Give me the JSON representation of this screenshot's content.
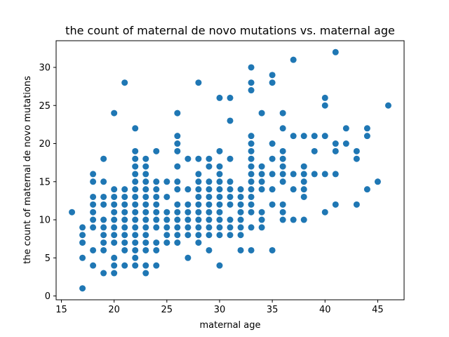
{
  "chart_data": {
    "type": "scatter",
    "title": "the count of maternal de novo mutations vs. maternal age",
    "xlabel": "maternal age",
    "ylabel": "the count of maternal de novo mutations",
    "xlim": [
      14.5,
      47.5
    ],
    "ylim": [
      -0.5,
      33.5
    ],
    "xticks": [
      15,
      20,
      25,
      30,
      35,
      40,
      45
    ],
    "yticks": [
      0,
      5,
      10,
      15,
      20,
      25,
      30
    ],
    "grid": false,
    "legend": "none",
    "marker_color": "#1f77b4",
    "points": [
      [
        16,
        11
      ],
      [
        17,
        1
      ],
      [
        17,
        5
      ],
      [
        17,
        7
      ],
      [
        17,
        8
      ],
      [
        17,
        9
      ],
      [
        18,
        4
      ],
      [
        18,
        6
      ],
      [
        18,
        9
      ],
      [
        18,
        10
      ],
      [
        18,
        11
      ],
      [
        18,
        12
      ],
      [
        18,
        13
      ],
      [
        18,
        15
      ],
      [
        18,
        16
      ],
      [
        19,
        3
      ],
      [
        19,
        6
      ],
      [
        19,
        7
      ],
      [
        19,
        8
      ],
      [
        19,
        9
      ],
      [
        19,
        10
      ],
      [
        19,
        12
      ],
      [
        19,
        13
      ],
      [
        19,
        15
      ],
      [
        19,
        18
      ],
      [
        20,
        3
      ],
      [
        20,
        4
      ],
      [
        20,
        5
      ],
      [
        20,
        7
      ],
      [
        20,
        8
      ],
      [
        20,
        9
      ],
      [
        20,
        10
      ],
      [
        20,
        11
      ],
      [
        20,
        12
      ],
      [
        20,
        13
      ],
      [
        20,
        14
      ],
      [
        20,
        24
      ],
      [
        21,
        4
      ],
      [
        21,
        6
      ],
      [
        21,
        7
      ],
      [
        21,
        8
      ],
      [
        21,
        9
      ],
      [
        21,
        10
      ],
      [
        21,
        11
      ],
      [
        21,
        12
      ],
      [
        21,
        13
      ],
      [
        21,
        14
      ],
      [
        21,
        28
      ],
      [
        22,
        4
      ],
      [
        22,
        5
      ],
      [
        22,
        6
      ],
      [
        22,
        7
      ],
      [
        22,
        8
      ],
      [
        22,
        9
      ],
      [
        22,
        10
      ],
      [
        22,
        11
      ],
      [
        22,
        12
      ],
      [
        22,
        13
      ],
      [
        22,
        14
      ],
      [
        22,
        15
      ],
      [
        22,
        16
      ],
      [
        22,
        17
      ],
      [
        22,
        18
      ],
      [
        22,
        19
      ],
      [
        22,
        22
      ],
      [
        23,
        3
      ],
      [
        23,
        4
      ],
      [
        23,
        6
      ],
      [
        23,
        7
      ],
      [
        23,
        8
      ],
      [
        23,
        9
      ],
      [
        23,
        10
      ],
      [
        23,
        11
      ],
      [
        23,
        12
      ],
      [
        23,
        13
      ],
      [
        23,
        14
      ],
      [
        23,
        15
      ],
      [
        23,
        16
      ],
      [
        23,
        17
      ],
      [
        23,
        18
      ],
      [
        24,
        4
      ],
      [
        24,
        6
      ],
      [
        24,
        7
      ],
      [
        24,
        9
      ],
      [
        24,
        10
      ],
      [
        24,
        11
      ],
      [
        24,
        12
      ],
      [
        24,
        13
      ],
      [
        24,
        14
      ],
      [
        24,
        15
      ],
      [
        24,
        19
      ],
      [
        25,
        7
      ],
      [
        25,
        8
      ],
      [
        25,
        9
      ],
      [
        25,
        10
      ],
      [
        25,
        11
      ],
      [
        25,
        13
      ],
      [
        25,
        15
      ],
      [
        26,
        7
      ],
      [
        26,
        8
      ],
      [
        26,
        9
      ],
      [
        26,
        10
      ],
      [
        26,
        11
      ],
      [
        26,
        12
      ],
      [
        26,
        14
      ],
      [
        26,
        15
      ],
      [
        26,
        17
      ],
      [
        26,
        19
      ],
      [
        26,
        20
      ],
      [
        26,
        21
      ],
      [
        26,
        24
      ],
      [
        27,
        5
      ],
      [
        27,
        8
      ],
      [
        27,
        9
      ],
      [
        27,
        10
      ],
      [
        27,
        11
      ],
      [
        27,
        12
      ],
      [
        27,
        14
      ],
      [
        27,
        18
      ],
      [
        28,
        7
      ],
      [
        28,
        8
      ],
      [
        28,
        9
      ],
      [
        28,
        10
      ],
      [
        28,
        11
      ],
      [
        28,
        12
      ],
      [
        28,
        13
      ],
      [
        28,
        14
      ],
      [
        28,
        15
      ],
      [
        28,
        16
      ],
      [
        28,
        18
      ],
      [
        28,
        28
      ],
      [
        29,
        6
      ],
      [
        29,
        8
      ],
      [
        29,
        9
      ],
      [
        29,
        10
      ],
      [
        29,
        11
      ],
      [
        29,
        12
      ],
      [
        29,
        13
      ],
      [
        29,
        14
      ],
      [
        29,
        15
      ],
      [
        29,
        17
      ],
      [
        29,
        18
      ],
      [
        30,
        4
      ],
      [
        30,
        8
      ],
      [
        30,
        9
      ],
      [
        30,
        10
      ],
      [
        30,
        11
      ],
      [
        30,
        12
      ],
      [
        30,
        13
      ],
      [
        30,
        14
      ],
      [
        30,
        15
      ],
      [
        30,
        16
      ],
      [
        30,
        17
      ],
      [
        30,
        19
      ],
      [
        30,
        26
      ],
      [
        31,
        8
      ],
      [
        31,
        9
      ],
      [
        31,
        10
      ],
      [
        31,
        12
      ],
      [
        31,
        13
      ],
      [
        31,
        14
      ],
      [
        31,
        15
      ],
      [
        31,
        18
      ],
      [
        31,
        23
      ],
      [
        31,
        26
      ],
      [
        32,
        6
      ],
      [
        32,
        8
      ],
      [
        32,
        9
      ],
      [
        32,
        10
      ],
      [
        32,
        11
      ],
      [
        32,
        12
      ],
      [
        32,
        13
      ],
      [
        32,
        14
      ],
      [
        33,
        6
      ],
      [
        33,
        9
      ],
      [
        33,
        11
      ],
      [
        33,
        12
      ],
      [
        33,
        13
      ],
      [
        33,
        14
      ],
      [
        33,
        15
      ],
      [
        33,
        16
      ],
      [
        33,
        17
      ],
      [
        33,
        18
      ],
      [
        33,
        19
      ],
      [
        33,
        20
      ],
      [
        33,
        21
      ],
      [
        33,
        27
      ],
      [
        33,
        28
      ],
      [
        33,
        30
      ],
      [
        34,
        9
      ],
      [
        34,
        10
      ],
      [
        34,
        11
      ],
      [
        34,
        14
      ],
      [
        34,
        15
      ],
      [
        34,
        16
      ],
      [
        34,
        17
      ],
      [
        34,
        24
      ],
      [
        35,
        6
      ],
      [
        35,
        12
      ],
      [
        35,
        14
      ],
      [
        35,
        16
      ],
      [
        35,
        18
      ],
      [
        35,
        20
      ],
      [
        35,
        28
      ],
      [
        35,
        29
      ],
      [
        36,
        10
      ],
      [
        36,
        11
      ],
      [
        36,
        12
      ],
      [
        36,
        15
      ],
      [
        36,
        16
      ],
      [
        36,
        17
      ],
      [
        36,
        18
      ],
      [
        36,
        19
      ],
      [
        36,
        22
      ],
      [
        36,
        24
      ],
      [
        37,
        10
      ],
      [
        37,
        14
      ],
      [
        37,
        16
      ],
      [
        37,
        21
      ],
      [
        37,
        31
      ],
      [
        38,
        10
      ],
      [
        38,
        13
      ],
      [
        38,
        14
      ],
      [
        38,
        15
      ],
      [
        38,
        16
      ],
      [
        38,
        17
      ],
      [
        38,
        21
      ],
      [
        39,
        16
      ],
      [
        39,
        19
      ],
      [
        39,
        21
      ],
      [
        40,
        11
      ],
      [
        40,
        16
      ],
      [
        40,
        21
      ],
      [
        40,
        25
      ],
      [
        40,
        26
      ],
      [
        41,
        12
      ],
      [
        41,
        16
      ],
      [
        41,
        19
      ],
      [
        41,
        20
      ],
      [
        41,
        32
      ],
      [
        42,
        20
      ],
      [
        42,
        22
      ],
      [
        43,
        12
      ],
      [
        43,
        18
      ],
      [
        43,
        19
      ],
      [
        44,
        14
      ],
      [
        44,
        21
      ],
      [
        44,
        22
      ],
      [
        45,
        15
      ],
      [
        46,
        25
      ]
    ]
  }
}
